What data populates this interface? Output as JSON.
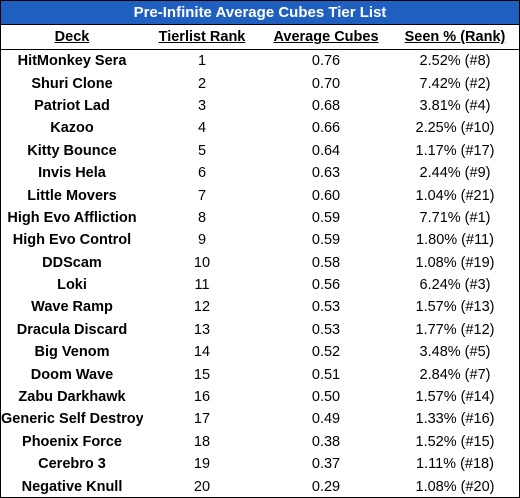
{
  "title": "Pre-Infinite Average Cubes Tier List",
  "headers": {
    "deck": "Deck",
    "rank": "Tierlist Rank",
    "avg": "Average Cubes",
    "seen": "Seen % (Rank)"
  },
  "colors": {
    "title_bg": "#1f5fbf",
    "title_text": "#ffffff"
  },
  "rows": [
    {
      "deck": "HitMonkey Sera",
      "rank": "1",
      "avg": "0.76",
      "seen": "2.52% (#8)"
    },
    {
      "deck": "Shuri Clone",
      "rank": "2",
      "avg": "0.70",
      "seen": "7.42% (#2)"
    },
    {
      "deck": "Patriot Lad",
      "rank": "3",
      "avg": "0.68",
      "seen": "3.81% (#4)"
    },
    {
      "deck": "Kazoo",
      "rank": "4",
      "avg": "0.66",
      "seen": "2.25% (#10)"
    },
    {
      "deck": "Kitty Bounce",
      "rank": "5",
      "avg": "0.64",
      "seen": "1.17% (#17)"
    },
    {
      "deck": "Invis Hela",
      "rank": "6",
      "avg": "0.63",
      "seen": "2.44% (#9)"
    },
    {
      "deck": "Little Movers",
      "rank": "7",
      "avg": "0.60",
      "seen": "1.04% (#21)"
    },
    {
      "deck": "High Evo Affliction",
      "rank": "8",
      "avg": "0.59",
      "seen": "7.71% (#1)"
    },
    {
      "deck": "High Evo Control",
      "rank": "9",
      "avg": "0.59",
      "seen": "1.80% (#11)"
    },
    {
      "deck": "DDScam",
      "rank": "10",
      "avg": "0.58",
      "seen": "1.08% (#19)"
    },
    {
      "deck": "Loki",
      "rank": "11",
      "avg": "0.56",
      "seen": "6.24% (#3)"
    },
    {
      "deck": "Wave Ramp",
      "rank": "12",
      "avg": "0.53",
      "seen": "1.57% (#13)"
    },
    {
      "deck": "Dracula Discard",
      "rank": "13",
      "avg": "0.53",
      "seen": "1.77% (#12)"
    },
    {
      "deck": "Big Venom",
      "rank": "14",
      "avg": "0.52",
      "seen": "3.48% (#5)"
    },
    {
      "deck": "Doom Wave",
      "rank": "15",
      "avg": "0.51",
      "seen": "2.84% (#7)"
    },
    {
      "deck": "Zabu Darkhawk",
      "rank": "16",
      "avg": "0.50",
      "seen": "1.57% (#14)"
    },
    {
      "deck": "Generic Self Destroy",
      "rank": "17",
      "avg": "0.49",
      "seen": "1.33% (#16)"
    },
    {
      "deck": "Phoenix Force",
      "rank": "18",
      "avg": "0.38",
      "seen": "1.52% (#15)"
    },
    {
      "deck": "Cerebro 3",
      "rank": "19",
      "avg": "0.37",
      "seen": "1.11% (#18)"
    },
    {
      "deck": "Negative Knull",
      "rank": "20",
      "avg": "0.29",
      "seen": "1.08% (#20)"
    }
  ]
}
